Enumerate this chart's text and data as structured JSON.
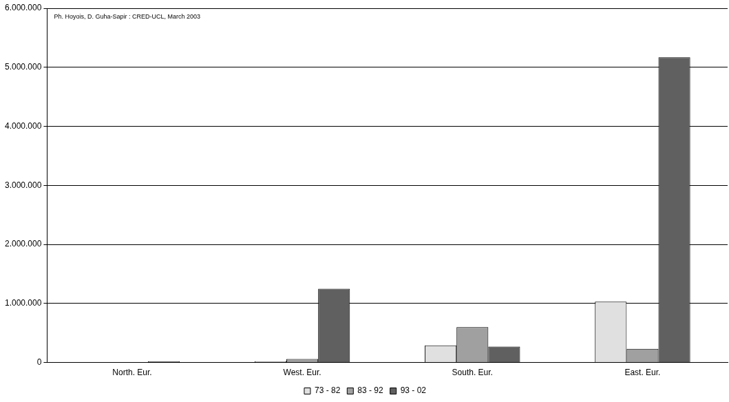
{
  "chart_data": {
    "type": "bar",
    "categories": [
      "North. Eur.",
      "West. Eur.",
      "South. Eur.",
      "East. Eur."
    ],
    "series": [
      {
        "name": "73 - 82",
        "color": "#e0e0e0",
        "values": [
          0,
          20000,
          290000,
          1030000
        ]
      },
      {
        "name": "83 - 92",
        "color": "#a0a0a0",
        "values": [
          0,
          60000,
          600000,
          230000
        ]
      },
      {
        "name": "93 - 02",
        "color": "#606060",
        "values": [
          20000,
          1250000,
          270000,
          5170000
        ]
      }
    ],
    "ylim": [
      0,
      6000000
    ],
    "yticks": [
      {
        "value": 0,
        "label": "0"
      },
      {
        "value": 1000000,
        "label": "1.000.000"
      },
      {
        "value": 2000000,
        "label": "2.000.000"
      },
      {
        "value": 3000000,
        "label": "3.000.000"
      },
      {
        "value": 4000000,
        "label": "4.000.000"
      },
      {
        "value": 5000000,
        "label": "5.000.000"
      },
      {
        "value": 6000000,
        "label": "6.000.000"
      }
    ],
    "grid": "y",
    "legend": "bottom",
    "annotations": [
      "Ph. Hoyois, D. Guha-Sapir : CRED-UCL, March 2003"
    ]
  }
}
